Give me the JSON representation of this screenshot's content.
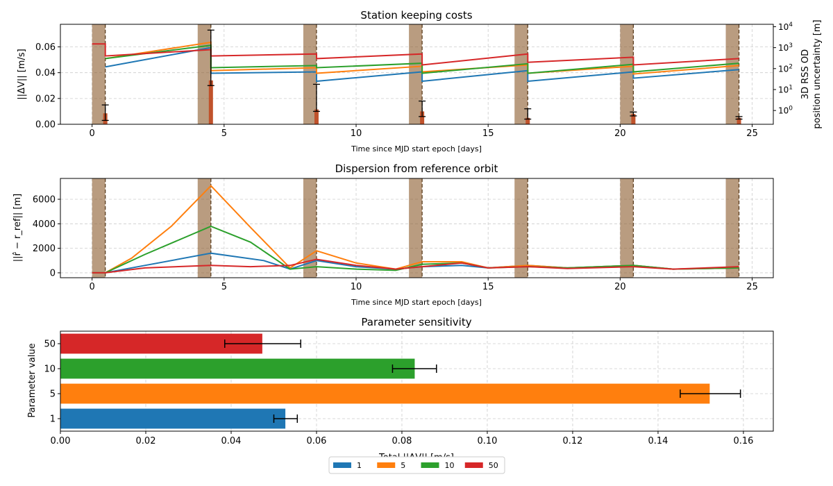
{
  "figure": {
    "legend": {
      "position": "bottom-center",
      "entries": [
        {
          "label": "1",
          "color": "#1f77b4"
        },
        {
          "label": "5",
          "color": "#ff7f0e"
        },
        {
          "label": "10",
          "color": "#2ca02c"
        },
        {
          "label": "50",
          "color": "#d62728"
        }
      ]
    }
  },
  "chart_data": [
    {
      "type": "line",
      "title": "Station keeping costs",
      "xlabel": "Time since MJD start epoch [days]",
      "ylabel": "||ΔV|| [m/s]",
      "ylabel_right": [
        "3D RSS OD",
        "position uncertainty [m]"
      ],
      "xlim": [
        -1.2,
        25.8
      ],
      "ylim": [
        0,
        0.0775
      ],
      "xticks": [
        0,
        5,
        10,
        15,
        20,
        25
      ],
      "yticks": [
        0.0,
        0.02,
        0.04,
        0.06
      ],
      "ytick_labels": [
        "0.00",
        "0.02",
        "0.04",
        "0.06"
      ],
      "y2_scale": "log",
      "y2lim": [
        0.22,
        13000
      ],
      "y2ticks": [
        1,
        10,
        100,
        1000,
        10000
      ],
      "grid": true,
      "maneuver_windows": [
        [
          0,
          0.5
        ],
        [
          4,
          4.5
        ],
        [
          8,
          8.5
        ],
        [
          12,
          12.5
        ],
        [
          16,
          16.5
        ],
        [
          20,
          20.5
        ],
        [
          24,
          24.5
        ]
      ],
      "maneuver_times": [
        0.5,
        4.5,
        8.5,
        12.5,
        16.5,
        20.5,
        24.5
      ],
      "series": [
        {
          "name": "1",
          "color": "#1f77b4",
          "x": [
            0.5,
            4.5,
            4.5,
            8.5,
            8.5,
            12.5,
            12.5,
            16.5,
            16.5,
            20.5,
            20.5,
            24.5
          ],
          "y": [
            120,
            1000,
            60,
            70,
            25,
            70,
            25,
            80,
            25,
            70,
            35,
            90
          ],
          "axis": "right"
        },
        {
          "name": "5",
          "color": "#ff7f0e",
          "x": [
            0.5,
            4.5,
            4.5,
            8.5,
            8.5,
            12.5,
            12.5,
            16.5,
            16.5,
            20.5,
            20.5,
            24.5
          ],
          "y": [
            300,
            1800,
            80,
            110,
            60,
            130,
            70,
            150,
            60,
            130,
            55,
            140
          ],
          "axis": "right"
        },
        {
          "name": "10",
          "color": "#2ca02c",
          "x": [
            0.5,
            4.5,
            4.5,
            8.5,
            8.5,
            12.5,
            12.5,
            16.5,
            16.5,
            20.5,
            20.5,
            24.5
          ],
          "y": [
            300,
            1300,
            110,
            140,
            110,
            180,
            60,
            170,
            60,
            160,
            70,
            180
          ],
          "axis": "right"
        },
        {
          "name": "50",
          "color": "#d62728",
          "x": [
            0,
            0.5,
            0.5,
            4.5,
            4.5,
            8.5,
            8.5,
            12.5,
            12.5,
            16.5,
            16.5,
            20.5,
            20.5,
            24.5
          ],
          "y": [
            1500,
            1500,
            400,
            800,
            400,
            500,
            300,
            500,
            150,
            500,
            200,
            350,
            150,
            300
          ],
          "axis": "right"
        }
      ],
      "impulse_bars": [
        {
          "x": 0.5,
          "value": 0.0085,
          "error_low": 0.003,
          "error_high": 0.015
        },
        {
          "x": 4.5,
          "value": 0.034,
          "error_low": 0.03,
          "error_high": 0.073
        },
        {
          "x": 8.5,
          "value": 0.0115,
          "error_low": 0.01,
          "error_high": 0.031
        },
        {
          "x": 12.5,
          "value": 0.01,
          "error_low": 0.006,
          "error_high": 0.018
        },
        {
          "x": 16.5,
          "value": 0.005,
          "error_low": 0.004,
          "error_high": 0.012
        },
        {
          "x": 20.5,
          "value": 0.008,
          "error_low": 0.0065,
          "error_high": 0.0095
        },
        {
          "x": 24.5,
          "value": 0.005,
          "error_low": 0.004,
          "error_high": 0.006
        }
      ]
    },
    {
      "type": "line",
      "title": "Dispersion from reference orbit",
      "xlabel": "Time since MJD start epoch [days]",
      "ylabel": "||r̂ − r_ref|| [m]",
      "xlim": [
        -1.2,
        25.8
      ],
      "ylim": [
        -400,
        7700
      ],
      "xticks": [
        0,
        5,
        10,
        15,
        20,
        25
      ],
      "yticks": [
        0,
        2000,
        4000,
        6000
      ],
      "grid": true,
      "maneuver_windows": [
        [
          0,
          0.5
        ],
        [
          4,
          4.5
        ],
        [
          8,
          8.5
        ],
        [
          12,
          12.5
        ],
        [
          16,
          16.5
        ],
        [
          20,
          20.5
        ],
        [
          24,
          24.5
        ]
      ],
      "maneuver_times": [
        0.5,
        4.5,
        8.5,
        12.5,
        16.5,
        20.5,
        24.5
      ],
      "series": [
        {
          "name": "1",
          "color": "#1f77b4",
          "x": [
            0,
            0.5,
            2,
            4.5,
            6.5,
            7.5,
            8.5,
            10,
            11.5,
            12.5,
            14,
            15,
            16.5,
            18,
            20.5,
            22,
            24.5
          ],
          "y": [
            0,
            0,
            600,
            1600,
            1000,
            300,
            1000,
            500,
            300,
            500,
            600,
            400,
            600,
            400,
            600,
            300,
            400
          ]
        },
        {
          "name": "5",
          "color": "#ff7f0e",
          "x": [
            0,
            0.5,
            1.5,
            3,
            4.5,
            6,
            7.5,
            8.5,
            10,
            11.5,
            12.5,
            14,
            15,
            16.5,
            18,
            20.5,
            22,
            24.5
          ],
          "y": [
            0,
            0,
            1200,
            3800,
            7100,
            3700,
            400,
            1800,
            800,
            300,
            900,
            900,
            400,
            600,
            400,
            600,
            300,
            400
          ]
        },
        {
          "name": "10",
          "color": "#2ca02c",
          "x": [
            0,
            0.5,
            2,
            4.5,
            6,
            7.5,
            8.5,
            10,
            11.5,
            12.5,
            14,
            15,
            16.5,
            18,
            20.5,
            22,
            24.5
          ],
          "y": [
            0,
            0,
            1500,
            3800,
            2500,
            300,
            500,
            300,
            200,
            700,
            800,
            400,
            500,
            400,
            600,
            300,
            400
          ]
        },
        {
          "name": "50",
          "color": "#d62728",
          "x": [
            0,
            0.5,
            2,
            4.5,
            6,
            7.5,
            8.5,
            10,
            11.5,
            12.5,
            14,
            15,
            16.5,
            18,
            20.5,
            22,
            24.5
          ],
          "y": [
            0,
            0,
            400,
            600,
            500,
            600,
            1100,
            600,
            300,
            500,
            800,
            400,
            500,
            350,
            500,
            300,
            500
          ]
        }
      ]
    },
    {
      "type": "bar",
      "orientation": "horizontal",
      "title": "Parameter sensitivity",
      "xlabel": "Total ||ΔV|| [m/s]",
      "ylabel": "Parameter value",
      "xlim": [
        0,
        0.167
      ],
      "xticks": [
        0.0,
        0.02,
        0.04,
        0.06,
        0.08,
        0.1,
        0.12,
        0.14,
        0.16
      ],
      "xtick_labels": [
        "0.00",
        "0.02",
        "0.04",
        "0.06",
        "0.08",
        "0.10",
        "0.12",
        "0.14",
        "0.16"
      ],
      "grid": true,
      "categories": [
        "1",
        "5",
        "10",
        "50"
      ],
      "values": [
        0.0527,
        0.1521,
        0.083,
        0.0473
      ],
      "errors": [
        [
          0.05,
          0.0555
        ],
        [
          0.1452,
          0.1593
        ],
        [
          0.0778,
          0.0881
        ],
        [
          0.0385,
          0.0563
        ]
      ],
      "colors": [
        "#1f77b4",
        "#ff7f0e",
        "#2ca02c",
        "#d62728"
      ]
    }
  ]
}
